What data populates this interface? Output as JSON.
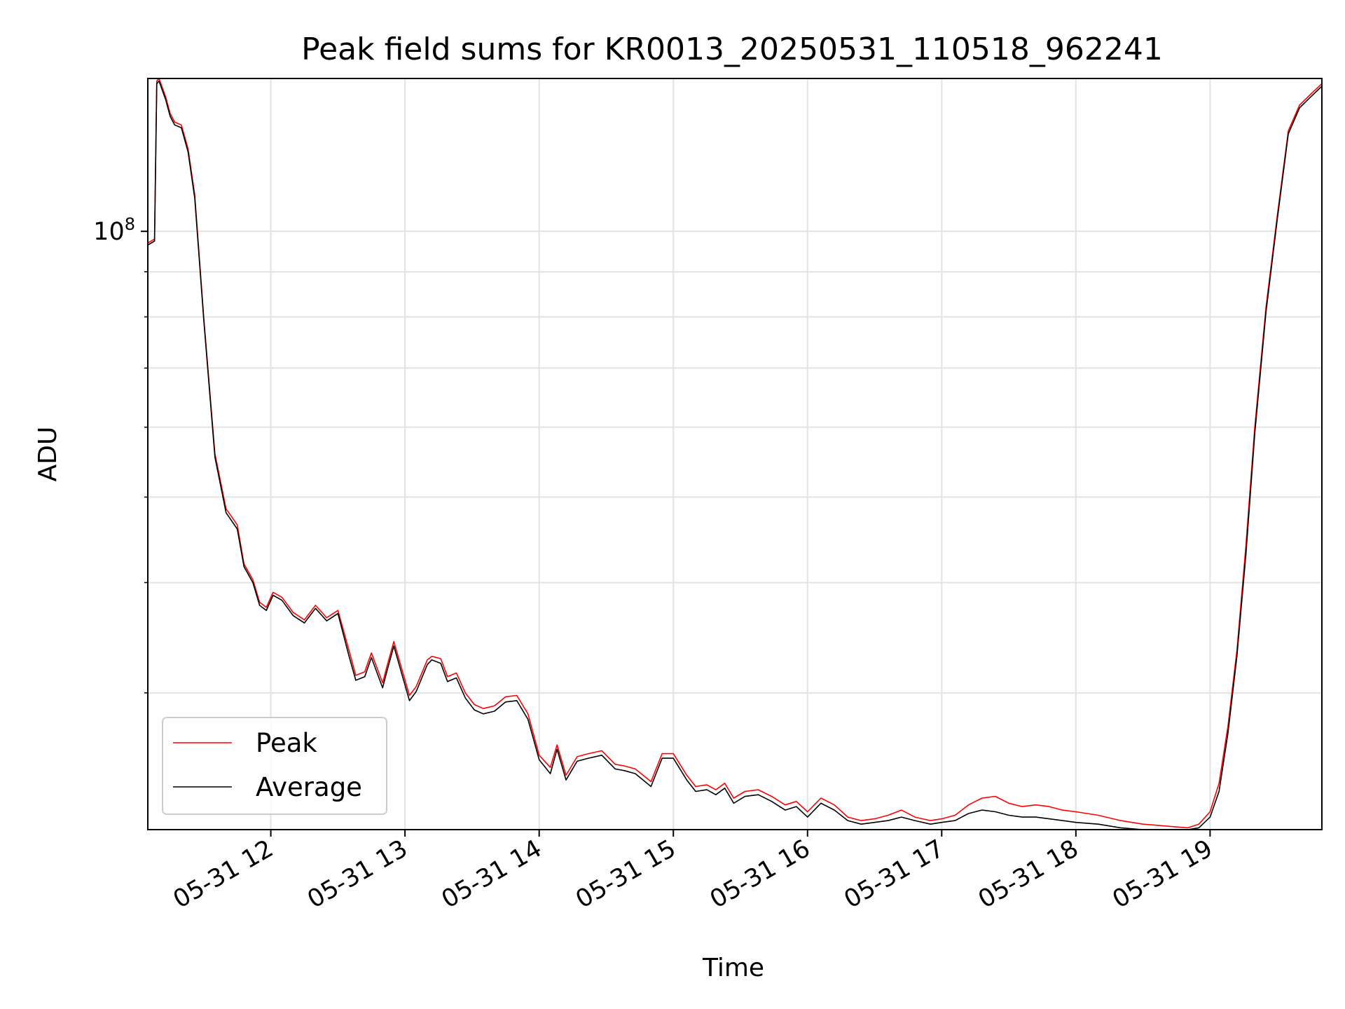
{
  "chart_data": {
    "type": "line",
    "title": "Peak field sums for KR0013_20250531_110518_962241",
    "xlabel": "Time",
    "ylabel": "ADU",
    "y_scale": "log",
    "x_range": [
      "2025-05-31 11:05",
      "2025-05-31 19:50"
    ],
    "ylim": [
      21000000,
      149000000
    ],
    "x_ticks": [
      {
        "value": "2025-05-31 12:00",
        "label": "05-31 12"
      },
      {
        "value": "2025-05-31 13:00",
        "label": "05-31 13"
      },
      {
        "value": "2025-05-31 14:00",
        "label": "05-31 14"
      },
      {
        "value": "2025-05-31 15:00",
        "label": "05-31 15"
      },
      {
        "value": "2025-05-31 16:00",
        "label": "05-31 16"
      },
      {
        "value": "2025-05-31 17:00",
        "label": "05-31 17"
      },
      {
        "value": "2025-05-31 18:00",
        "label": "05-31 18"
      },
      {
        "value": "2025-05-31 19:00",
        "label": "05-31 19"
      }
    ],
    "y_major_ticks": [
      {
        "value": 100000000,
        "label_base": "10",
        "label_exp": "8"
      }
    ],
    "y_minor_ticks": [
      30000000,
      40000000,
      50000000,
      60000000,
      70000000,
      80000000,
      90000000
    ],
    "grid": true,
    "legend_position": "lower-left",
    "series": [
      {
        "name": "Peak",
        "color": "#ff0000",
        "x": [
          "2025-05-31 11:05",
          "2025-05-31 11:08",
          "2025-05-31 11:09",
          "2025-05-31 11:10",
          "2025-05-31 11:13",
          "2025-05-31 11:15",
          "2025-05-31 11:17",
          "2025-05-31 11:20",
          "2025-05-31 11:23",
          "2025-05-31 11:26",
          "2025-05-31 11:30",
          "2025-05-31 11:35",
          "2025-05-31 11:40",
          "2025-05-31 11:45",
          "2025-05-31 11:48",
          "2025-05-31 11:52",
          "2025-05-31 11:55",
          "2025-05-31 11:58",
          "2025-05-31 12:01",
          "2025-05-31 12:05",
          "2025-05-31 12:10",
          "2025-05-31 12:15",
          "2025-05-31 12:20",
          "2025-05-31 12:25",
          "2025-05-31 12:30",
          "2025-05-31 12:35",
          "2025-05-31 12:38",
          "2025-05-31 12:42",
          "2025-05-31 12:45",
          "2025-05-31 12:50",
          "2025-05-31 12:52",
          "2025-05-31 12:55",
          "2025-05-31 12:58",
          "2025-05-31 13:02",
          "2025-05-31 13:05",
          "2025-05-31 13:10",
          "2025-05-31 13:12",
          "2025-05-31 13:16",
          "2025-05-31 13:19",
          "2025-05-31 13:23",
          "2025-05-31 13:27",
          "2025-05-31 13:31",
          "2025-05-31 13:35",
          "2025-05-31 13:40",
          "2025-05-31 13:45",
          "2025-05-31 13:50",
          "2025-05-31 13:55",
          "2025-05-31 14:00",
          "2025-05-31 14:05",
          "2025-05-31 14:08",
          "2025-05-31 14:12",
          "2025-05-31 14:17",
          "2025-05-31 14:22",
          "2025-05-31 14:28",
          "2025-05-31 14:34",
          "2025-05-31 14:38",
          "2025-05-31 14:43",
          "2025-05-31 14:50",
          "2025-05-31 14:55",
          "2025-05-31 15:00",
          "2025-05-31 15:06",
          "2025-05-31 15:10",
          "2025-05-31 15:15",
          "2025-05-31 15:19",
          "2025-05-31 15:23",
          "2025-05-31 15:27",
          "2025-05-31 15:32",
          "2025-05-31 15:38",
          "2025-05-31 15:44",
          "2025-05-31 15:50",
          "2025-05-31 15:55",
          "2025-05-31 16:00",
          "2025-05-31 16:06",
          "2025-05-31 16:12",
          "2025-05-31 16:18",
          "2025-05-31 16:24",
          "2025-05-31 16:30",
          "2025-05-31 16:36",
          "2025-05-31 16:42",
          "2025-05-31 16:48",
          "2025-05-31 16:55",
          "2025-05-31 17:00",
          "2025-05-31 17:06",
          "2025-05-31 17:12",
          "2025-05-31 17:18",
          "2025-05-31 17:24",
          "2025-05-31 17:30",
          "2025-05-31 17:36",
          "2025-05-31 17:42",
          "2025-05-31 17:48",
          "2025-05-31 17:54",
          "2025-05-31 18:00",
          "2025-05-31 18:10",
          "2025-05-31 18:20",
          "2025-05-31 18:30",
          "2025-05-31 18:40",
          "2025-05-31 18:50",
          "2025-05-31 18:55",
          "2025-05-31 19:00",
          "2025-05-31 19:04",
          "2025-05-31 19:08",
          "2025-05-31 19:12",
          "2025-05-31 19:16",
          "2025-05-31 19:20",
          "2025-05-31 19:25",
          "2025-05-31 19:30",
          "2025-05-31 19:35",
          "2025-05-31 19:40",
          "2025-05-31 19:45",
          "2025-05-31 19:50"
        ],
        "values": [
          97000000,
          98000000,
          148000000,
          149000000,
          142000000,
          136000000,
          133000000,
          132000000,
          124000000,
          110000000,
          80000000,
          56000000,
          48500000,
          46500000,
          42000000,
          40300000,
          38000000,
          37500000,
          39000000,
          38500000,
          37000000,
          36300000,
          37700000,
          36500000,
          37200000,
          33500000,
          31400000,
          31700000,
          33300000,
          30800000,
          32200000,
          34300000,
          32300000,
          29800000,
          30500000,
          32700000,
          33000000,
          32800000,
          31300000,
          31600000,
          30000000,
          29100000,
          28800000,
          29000000,
          29700000,
          29800000,
          28400000,
          25500000,
          24700000,
          26200000,
          24200000,
          25400000,
          25600000,
          25800000,
          24900000,
          24800000,
          24600000,
          23800000,
          25600000,
          25600000,
          24200000,
          23500000,
          23600000,
          23300000,
          23700000,
          22800000,
          23200000,
          23300000,
          22900000,
          22400000,
          22600000,
          22000000,
          22800000,
          22400000,
          21700000,
          21500000,
          21600000,
          21800000,
          22100000,
          21700000,
          21500000,
          21600000,
          21800000,
          22400000,
          22800000,
          22900000,
          22500000,
          22300000,
          22400000,
          22300000,
          22100000,
          22000000,
          21800000,
          21500000,
          21300000,
          21200000,
          21100000,
          21300000,
          22000000,
          23700000,
          27500000,
          33500000,
          44000000,
          60000000,
          82000000,
          104000000,
          130000000,
          139000000,
          143000000,
          147000000
        ]
      },
      {
        "name": "Average",
        "color": "#000000",
        "x": [
          "2025-05-31 11:05",
          "2025-05-31 11:08",
          "2025-05-31 11:09",
          "2025-05-31 11:10",
          "2025-05-31 11:13",
          "2025-05-31 11:15",
          "2025-05-31 11:17",
          "2025-05-31 11:20",
          "2025-05-31 11:23",
          "2025-05-31 11:26",
          "2025-05-31 11:30",
          "2025-05-31 11:35",
          "2025-05-31 11:40",
          "2025-05-31 11:45",
          "2025-05-31 11:48",
          "2025-05-31 11:52",
          "2025-05-31 11:55",
          "2025-05-31 11:58",
          "2025-05-31 12:01",
          "2025-05-31 12:05",
          "2025-05-31 12:10",
          "2025-05-31 12:15",
          "2025-05-31 12:20",
          "2025-05-31 12:25",
          "2025-05-31 12:30",
          "2025-05-31 12:35",
          "2025-05-31 12:38",
          "2025-05-31 12:42",
          "2025-05-31 12:45",
          "2025-05-31 12:50",
          "2025-05-31 12:52",
          "2025-05-31 12:55",
          "2025-05-31 12:58",
          "2025-05-31 13:02",
          "2025-05-31 13:05",
          "2025-05-31 13:10",
          "2025-05-31 13:12",
          "2025-05-31 13:16",
          "2025-05-31 13:19",
          "2025-05-31 13:23",
          "2025-05-31 13:27",
          "2025-05-31 13:31",
          "2025-05-31 13:35",
          "2025-05-31 13:40",
          "2025-05-31 13:45",
          "2025-05-31 13:50",
          "2025-05-31 13:55",
          "2025-05-31 14:00",
          "2025-05-31 14:05",
          "2025-05-31 14:08",
          "2025-05-31 14:12",
          "2025-05-31 14:17",
          "2025-05-31 14:22",
          "2025-05-31 14:28",
          "2025-05-31 14:34",
          "2025-05-31 14:38",
          "2025-05-31 14:43",
          "2025-05-31 14:50",
          "2025-05-31 14:55",
          "2025-05-31 15:00",
          "2025-05-31 15:06",
          "2025-05-31 15:10",
          "2025-05-31 15:15",
          "2025-05-31 15:19",
          "2025-05-31 15:23",
          "2025-05-31 15:27",
          "2025-05-31 15:32",
          "2025-05-31 15:38",
          "2025-05-31 15:44",
          "2025-05-31 15:50",
          "2025-05-31 15:55",
          "2025-05-31 16:00",
          "2025-05-31 16:06",
          "2025-05-31 16:12",
          "2025-05-31 16:18",
          "2025-05-31 16:24",
          "2025-05-31 16:30",
          "2025-05-31 16:36",
          "2025-05-31 16:42",
          "2025-05-31 16:48",
          "2025-05-31 16:55",
          "2025-05-31 17:00",
          "2025-05-31 17:06",
          "2025-05-31 17:12",
          "2025-05-31 17:18",
          "2025-05-31 17:24",
          "2025-05-31 17:30",
          "2025-05-31 17:36",
          "2025-05-31 17:42",
          "2025-05-31 17:48",
          "2025-05-31 17:54",
          "2025-05-31 18:00",
          "2025-05-31 18:10",
          "2025-05-31 18:20",
          "2025-05-31 18:30",
          "2025-05-31 18:40",
          "2025-05-31 18:50",
          "2025-05-31 18:55",
          "2025-05-31 19:00",
          "2025-05-31 19:04",
          "2025-05-31 19:08",
          "2025-05-31 19:12",
          "2025-05-31 19:16",
          "2025-05-31 19:20",
          "2025-05-31 19:25",
          "2025-05-31 19:30",
          "2025-05-31 19:35",
          "2025-05-31 19:40",
          "2025-05-31 19:45",
          "2025-05-31 19:50"
        ],
        "values": [
          96500000,
          97500000,
          147000000,
          148000000,
          141000000,
          135000000,
          132000000,
          131000000,
          123000000,
          109000000,
          79500000,
          55500000,
          48000000,
          46000000,
          41700000,
          40000000,
          37700000,
          37200000,
          38700000,
          38200000,
          36700000,
          36000000,
          37400000,
          36200000,
          36900000,
          33000000,
          31000000,
          31300000,
          32900000,
          30400000,
          31800000,
          33900000,
          31900000,
          29400000,
          30100000,
          32300000,
          32700000,
          32400000,
          30900000,
          31200000,
          29600000,
          28700000,
          28400000,
          28600000,
          29300000,
          29400000,
          28000000,
          25200000,
          24300000,
          25900000,
          23900000,
          25100000,
          25300000,
          25500000,
          24600000,
          24500000,
          24300000,
          23500000,
          25300000,
          25300000,
          23900000,
          23200000,
          23300000,
          23000000,
          23400000,
          22500000,
          22900000,
          23000000,
          22600000,
          22100000,
          22300000,
          21700000,
          22500000,
          22100000,
          21500000,
          21300000,
          21400000,
          21500000,
          21700000,
          21500000,
          21300000,
          21400000,
          21500000,
          21900000,
          22100000,
          22000000,
          21800000,
          21700000,
          21700000,
          21600000,
          21500000,
          21400000,
          21300000,
          21100000,
          21000000,
          21000000,
          20900000,
          21100000,
          21700000,
          23200000,
          27000000,
          33000000,
          43000000,
          59000000,
          81000000,
          103000000,
          129000000,
          138000000,
          142000000,
          146000000
        ]
      }
    ]
  }
}
